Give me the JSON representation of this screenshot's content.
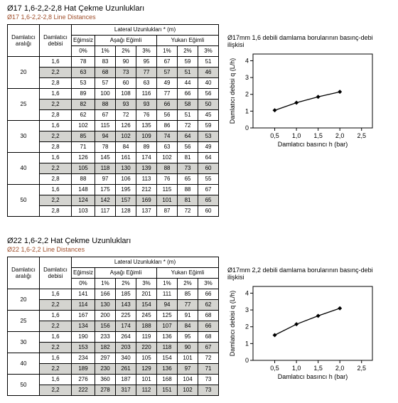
{
  "section1": {
    "diam": "Ø17",
    "title": "Ø17 1,6-2,2-2,8 Hat Çekme Uzunlukları",
    "subtitle": "Ø17 1,6-2,2-2,8 Line Distances",
    "headers": {
      "col1": "Damlatıcı aralığı",
      "col2": "Damlatıcı debisi",
      "lateral": "Lateral Uzunlukları * (m)",
      "flat": "Eğimsiz",
      "down": "Aşağı Eğimli",
      "up": "Yukarı Eğimli",
      "p0": "0%",
      "p1": "1%",
      "p2": "2%",
      "p3": "3%",
      "p1b": "1%",
      "p2b": "2%",
      "p3b": "3%"
    },
    "groups": [
      {
        "label": "20",
        "rows": [
          {
            "d": "1,6",
            "v": [
              "78",
              "83",
              "90",
              "95",
              "67",
              "59",
              "51"
            ]
          },
          {
            "d": "2,2",
            "v": [
              "63",
              "68",
              "73",
              "77",
              "57",
              "51",
              "46"
            ],
            "shade": true
          },
          {
            "d": "2,8",
            "v": [
              "53",
              "57",
              "60",
              "63",
              "49",
              "44",
              "40"
            ]
          }
        ]
      },
      {
        "label": "25",
        "rows": [
          {
            "d": "1,6",
            "v": [
              "89",
              "100",
              "108",
              "116",
              "77",
              "66",
              "56"
            ]
          },
          {
            "d": "2,2",
            "v": [
              "82",
              "88",
              "93",
              "93",
              "66",
              "58",
              "50"
            ],
            "shade": true
          },
          {
            "d": "2,8",
            "v": [
              "62",
              "67",
              "72",
              "76",
              "56",
              "51",
              "45"
            ]
          }
        ]
      },
      {
        "label": "30",
        "rows": [
          {
            "d": "1,6",
            "v": [
              "102",
              "115",
              "126",
              "135",
              "86",
              "72",
              "59"
            ]
          },
          {
            "d": "2,2",
            "v": [
              "85",
              "94",
              "102",
              "109",
              "74",
              "64",
              "53"
            ],
            "shade": true
          },
          {
            "d": "2,8",
            "v": [
              "71",
              "78",
              "84",
              "89",
              "63",
              "56",
              "49"
            ]
          }
        ]
      },
      {
        "label": "40",
        "rows": [
          {
            "d": "1,6",
            "v": [
              "126",
              "145",
              "161",
              "174",
              "102",
              "81",
              "64"
            ]
          },
          {
            "d": "2,2",
            "v": [
              "105",
              "118",
              "130",
              "139",
              "88",
              "73",
              "60"
            ],
            "shade": true
          },
          {
            "d": "2,8",
            "v": [
              "88",
              "97",
              "106",
              "113",
              "76",
              "65",
              "55"
            ]
          }
        ]
      },
      {
        "label": "50",
        "rows": [
          {
            "d": "1,6",
            "v": [
              "148",
              "175",
              "195",
              "212",
              "115",
              "88",
              "67"
            ]
          },
          {
            "d": "2,2",
            "v": [
              "124",
              "142",
              "157",
              "169",
              "101",
              "81",
              "65"
            ],
            "shade": true
          },
          {
            "d": "2,8",
            "v": [
              "103",
              "117",
              "128",
              "137",
              "87",
              "72",
              "60"
            ]
          }
        ]
      }
    ]
  },
  "chart1": {
    "title": "Ø17mm 1,6 debili damlama borularının basınç-debi ilişkisi",
    "xlabel": "Damlatıcı basıncı h (bar)",
    "ylabel": "Damlatıcı debisi q (L/h)",
    "xlim": [
      0,
      2.75
    ],
    "ylim": [
      0,
      4.4
    ],
    "xticks": [
      0.5,
      1.0,
      1.5,
      2.0,
      2.5
    ],
    "yticks": [
      0,
      1,
      2,
      3,
      4
    ],
    "series": {
      "x": [
        0.5,
        1.0,
        1.5,
        2.0
      ],
      "y": [
        1.05,
        1.5,
        1.85,
        2.15
      ]
    },
    "line_color": "#000000",
    "marker": "diamond",
    "bg": "#ffffff",
    "grid": "#000000"
  },
  "section2": {
    "title": "Ø22 1,6-2,2 Hat Çekme Uzunlukları",
    "subtitle": "Ø22 1,6-2,2 Line Distances",
    "headers": {
      "col1": "Damlatıcı aralığı",
      "col2": "Damlatıcı debisi",
      "lateral": "Lateral Uzunlukları * (m)",
      "flat": "Eğimsiz",
      "down": "Aşağı Eğimli",
      "up": "Yukarı Eğimli",
      "p0": "0%",
      "p1": "1%",
      "p2": "2%",
      "p3": "3%",
      "p1b": "1%",
      "p2b": "2%",
      "p3b": "3%"
    },
    "groups": [
      {
        "label": "20",
        "rows": [
          {
            "d": "1,6",
            "v": [
              "141",
              "166",
              "185",
              "201",
              "111",
              "85",
              "66"
            ]
          },
          {
            "d": "2,2",
            "v": [
              "114",
              "130",
              "143",
              "154",
              "94",
              "77",
              "62"
            ],
            "shade": true
          }
        ]
      },
      {
        "label": "25",
        "rows": [
          {
            "d": "1,6",
            "v": [
              "167",
              "200",
              "225",
              "245",
              "125",
              "91",
              "68"
            ]
          },
          {
            "d": "2,2",
            "v": [
              "134",
              "156",
              "174",
              "188",
              "107",
              "84",
              "66"
            ],
            "shade": true
          }
        ]
      },
      {
        "label": "30",
        "rows": [
          {
            "d": "1,6",
            "v": [
              "190",
              "233",
              "264",
              "119",
              "136",
              "95",
              "68"
            ]
          },
          {
            "d": "2,2",
            "v": [
              "153",
              "182",
              "203",
              "220",
              "118",
              "90",
              "67"
            ],
            "shade": true
          }
        ]
      },
      {
        "label": "40",
        "rows": [
          {
            "d": "1,6",
            "v": [
              "234",
              "297",
              "340",
              "105",
              "154",
              "101",
              "72"
            ]
          },
          {
            "d": "2,2",
            "v": [
              "189",
              "230",
              "261",
              "129",
              "136",
              "97",
              "71"
            ],
            "shade": true
          }
        ]
      },
      {
        "label": "50",
        "rows": [
          {
            "d": "1,6",
            "v": [
              "276",
              "360",
              "187",
              "101",
              "168",
              "104",
              "73"
            ]
          },
          {
            "d": "2,2",
            "v": [
              "222",
              "278",
              "317",
              "112",
              "151",
              "102",
              "73"
            ],
            "shade": true
          }
        ]
      }
    ]
  },
  "chart2": {
    "title": "Ø17mm 2,2 debili damlama borularının basınç-debi ilişkisi",
    "xlabel": "Damlatıcı basıncı h (bar)",
    "ylabel": "Damlatıcı debisi q (L/h)",
    "xlim": [
      0,
      2.75
    ],
    "ylim": [
      0,
      4.4
    ],
    "xticks": [
      0.5,
      1.0,
      1.5,
      2.0,
      2.5
    ],
    "yticks": [
      0,
      1,
      2,
      3,
      4
    ],
    "series": {
      "x": [
        0.5,
        1.0,
        1.5,
        2.0
      ],
      "y": [
        1.5,
        2.15,
        2.65,
        3.1
      ]
    },
    "line_color": "#000000",
    "marker": "diamond",
    "bg": "#ffffff",
    "grid": "#000000"
  }
}
